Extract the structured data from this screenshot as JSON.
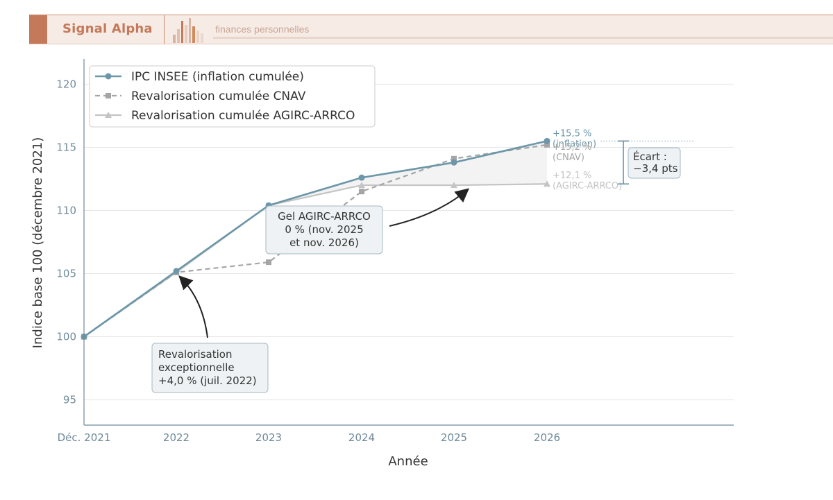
{
  "header": {
    "brand": "Signal Alpha",
    "tagline": "finances personnelles"
  },
  "colors": {
    "inflation": "#6c97a8",
    "cnav": "#a5a5a5",
    "agirc": "#c4c4c4",
    "brand": "#c47a5a",
    "banner_bg": "#f6ebe5"
  },
  "chart_data": {
    "type": "line",
    "xlabel": "Année",
    "ylabel": "Indice base 100 (décembre 2021)",
    "x_ticks": [
      "Déc. 2021",
      "2022",
      "2023",
      "2024",
      "2025",
      "2026"
    ],
    "y_ticks": [
      95,
      100,
      105,
      110,
      115,
      120
    ],
    "ylim": [
      93,
      122
    ],
    "grid": "horizontal",
    "legend_position": "top-left",
    "series": [
      {
        "name": "IPC INSEE (inflation cumulée)",
        "marker": "circle",
        "style": "solid",
        "values": [
          100,
          105.2,
          110.4,
          112.6,
          113.8,
          115.5
        ]
      },
      {
        "name": "Revalorisation cumulée CNAV",
        "marker": "square",
        "style": "dashed",
        "values": [
          100,
          105.1,
          105.9,
          111.5,
          114.1,
          115.2
        ]
      },
      {
        "name": "Revalorisation cumulée AGIRC-ARRCO",
        "marker": "triangle",
        "style": "solid",
        "values": [
          100,
          105.1,
          110.4,
          112.0,
          112.0,
          112.1
        ]
      }
    ],
    "end_labels": [
      {
        "line1": "+15,5 %",
        "line2": "(inflation)"
      },
      {
        "line1": "+15,2 %",
        "line2": "(CNAV)"
      },
      {
        "line1": "+12,1 %",
        "line2": "(AGIRC-ARRCO)"
      }
    ],
    "gap_label": {
      "line1": "Écart :",
      "line2": "−3,4 pts"
    },
    "annotations": [
      {
        "lines": [
          "Revalorisation",
          "exceptionnelle",
          "+4,0 % (juil. 2022)"
        ]
      },
      {
        "lines": [
          "Gel AGIRC-ARRCO",
          "0 % (nov. 2025",
          "et nov. 2026)"
        ]
      }
    ]
  }
}
